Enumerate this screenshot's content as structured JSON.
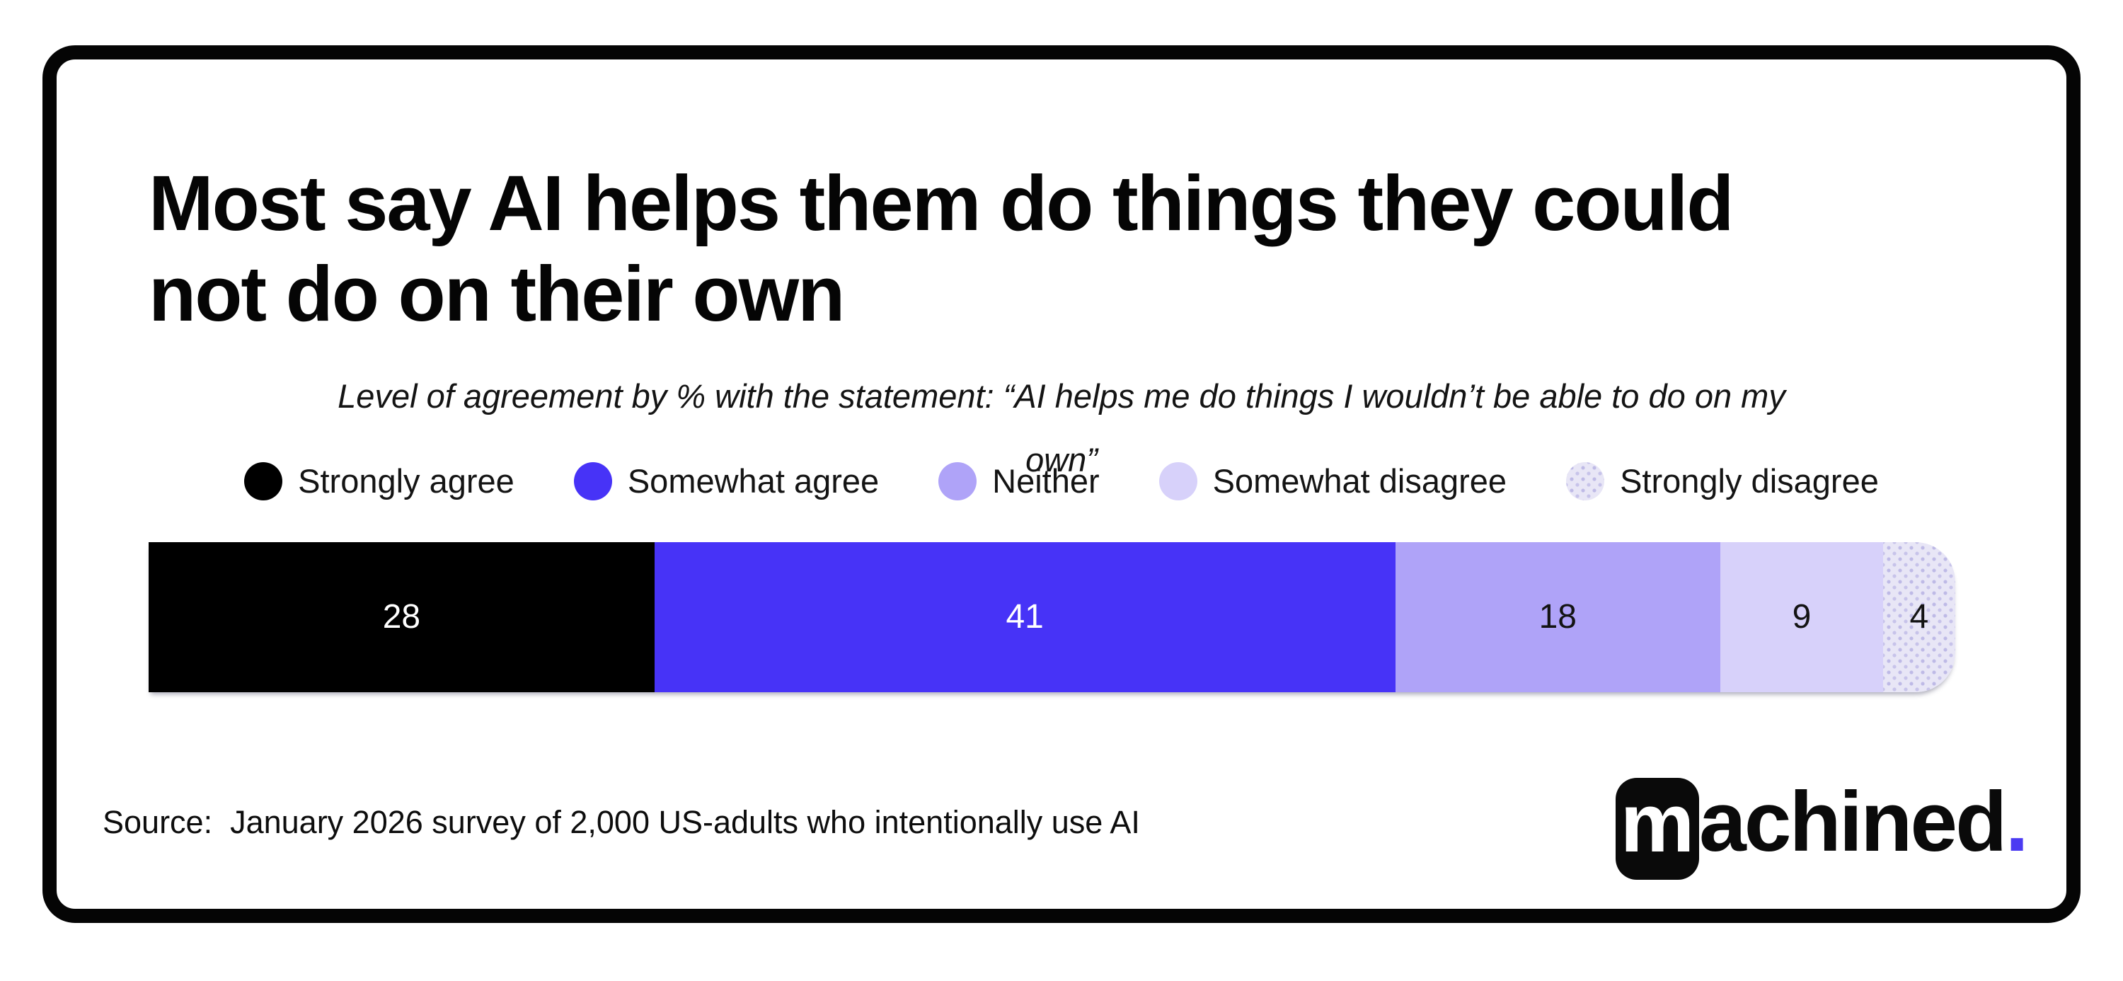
{
  "title": {
    "line1": "Most say AI helps them do things they could",
    "line2": "not do on their own"
  },
  "subtitle": {
    "line1": "Level of agreement by % with the statement: “AI helps me do things I wouldn’t be able to do on my",
    "line2": "own”"
  },
  "legend": {
    "items": [
      {
        "label": "Strongly agree",
        "color": "#000000",
        "textured": false
      },
      {
        "label": "Somewhat agree",
        "color": "#4733f7",
        "textured": false
      },
      {
        "label": "Neither",
        "color": "#afa3f8",
        "textured": false
      },
      {
        "label": "Somewhat disagree",
        "color": "#d7d1fa",
        "textured": false
      },
      {
        "label": "Strongly disagree",
        "color": "#e8e6f6",
        "textured": true
      }
    ]
  },
  "chart_data": {
    "type": "bar",
    "stacked": true,
    "orientation": "horizontal",
    "title": "Most say AI helps them do things they could not do on their own",
    "subtitle": "Level of agreement by % with the statement: “AI helps me do things I wouldn’t be able to do on my own”",
    "categories": [
      "Strongly agree",
      "Somewhat agree",
      "Neither",
      "Somewhat disagree",
      "Strongly disagree"
    ],
    "values": [
      28,
      41,
      18,
      9,
      4
    ],
    "unit": "percent",
    "xlim": [
      0,
      100
    ],
    "colors": [
      "#000000",
      "#4733f7",
      "#afa3f8",
      "#d7d1fa",
      "#e8e6f6"
    ],
    "value_label_colors": [
      "#ffffff",
      "#ffffff",
      "#141414",
      "#141414",
      "#141414"
    ],
    "legend_position": "top",
    "grid": false
  },
  "source": {
    "text": "Source:  January 2026 survey of 2,000 US-adults who intentionally use AI"
  },
  "logo": {
    "tile_letter": "m",
    "rest": "achined",
    "period": ".",
    "period_color": "#4b3bf2"
  }
}
